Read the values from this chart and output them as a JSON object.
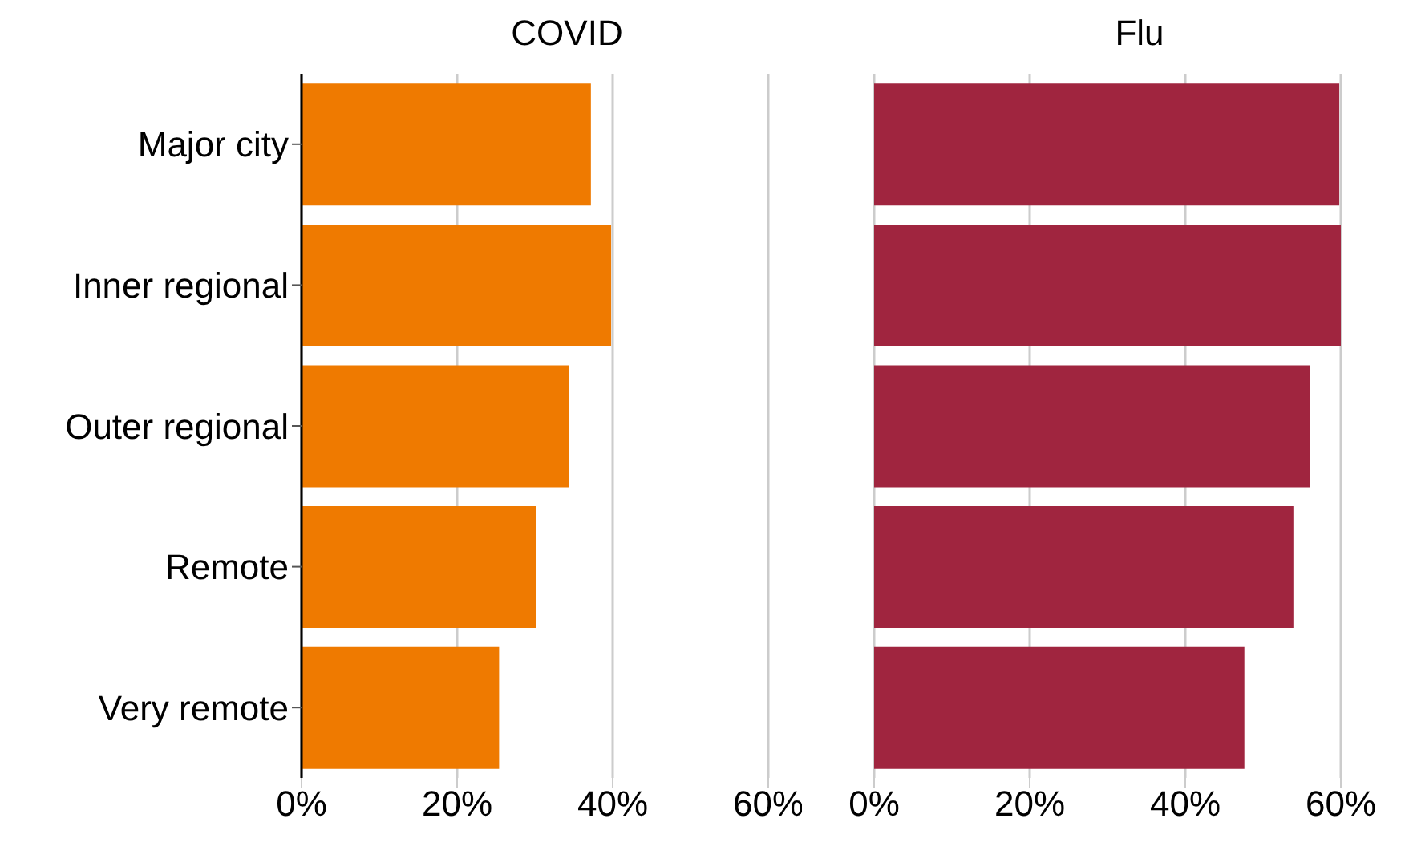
{
  "chart_data": [
    {
      "type": "bar",
      "orientation": "horizontal",
      "title": "COVID",
      "categories": [
        "Major city",
        "Inner regional",
        "Outer regional",
        "Remote",
        "Very remote"
      ],
      "values": [
        37.2,
        39.8,
        34.4,
        30.2,
        25.4
      ],
      "color": "#ef7a00",
      "xlim": [
        0,
        60
      ],
      "xticks": [
        {
          "value": 0,
          "label": "0%"
        },
        {
          "value": 20,
          "label": "20%"
        },
        {
          "value": 40,
          "label": "40%"
        },
        {
          "value": 60,
          "label": "60%"
        }
      ],
      "grid": "x"
    },
    {
      "type": "bar",
      "orientation": "horizontal",
      "title": "Flu",
      "categories": [
        null,
        null,
        null,
        null,
        null
      ],
      "values": [
        59.8,
        60.0,
        56.0,
        53.9,
        47.6
      ],
      "color": "#a0253f",
      "xlim": [
        0,
        60
      ],
      "xticks": [
        {
          "value": 0,
          "label": "0%"
        },
        {
          "value": 20,
          "label": "20%"
        },
        {
          "value": 40,
          "label": "40%"
        },
        {
          "value": 60,
          "label": "60%"
        }
      ],
      "grid": "x",
      "tick_labels": "x"
    }
  ]
}
